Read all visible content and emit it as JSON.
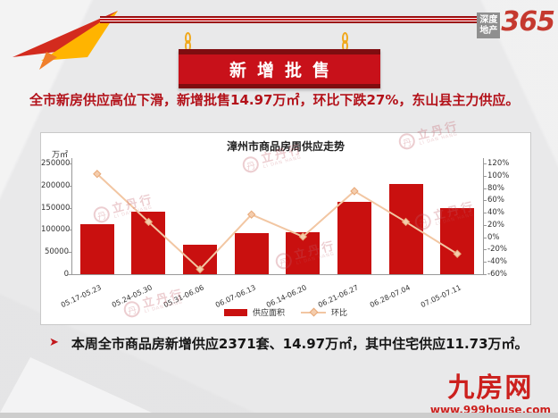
{
  "header": {
    "logo_line1": "深度",
    "logo_line2": "地产",
    "logo_365": "365",
    "banner_title": "新增批售"
  },
  "summary": {
    "text": "全市新房供应高位下滑，新增批售14.97万㎡，环比下跌27%，东山县主力供应。"
  },
  "chart_data": {
    "type": "bar",
    "title": "漳州市商品房周供应走势",
    "unit_label": "万㎡",
    "categories": [
      "05.17-05.23",
      "05.24-05.30",
      "05.31-06.06",
      "06.07-06.13",
      "06.14-06.20",
      "06.21-06.27",
      "06.28-07.04",
      "07.05-07.11"
    ],
    "series": [
      {
        "name": "供应面积",
        "type": "bar",
        "color": "#c9100f",
        "values": [
          113000,
          141000,
          67000,
          93000,
          94000,
          163000,
          204000,
          149700
        ]
      },
      {
        "name": "环比",
        "type": "line",
        "color": "#f2c6a2",
        "unit": "%",
        "values": [
          103,
          25,
          -52,
          37,
          1,
          75,
          25,
          -27
        ]
      }
    ],
    "left_axis": {
      "max": 250000,
      "min": 0,
      "ticks": [
        "250000",
        "200000",
        "150000",
        "100000",
        "50000",
        "0"
      ]
    },
    "right_axis": {
      "max": 120,
      "min": -60,
      "ticks": [
        "120%",
        "100%",
        "80%",
        "60%",
        "40%",
        "20%",
        "0%",
        "-20%",
        "-40%",
        "-60%"
      ]
    },
    "legend_position": "bottom",
    "grid": false,
    "watermark": {
      "circle_char": "丹",
      "name": "立丹行",
      "sub": "LI DAN HANG"
    }
  },
  "footnote": {
    "bullet": "➤",
    "text": "本周全市商品房新增供应2371套、14.97万㎡，其中住宅供应11.73万㎡。"
  },
  "footer_logo": {
    "name": "九房网",
    "url": "www.999house.com"
  }
}
